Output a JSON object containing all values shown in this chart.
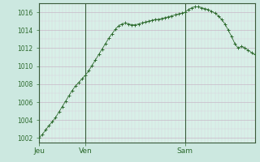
{
  "background_color": "#cce8e0",
  "plot_bg_color": "#d8f0e8",
  "line_color": "#2d6a2d",
  "marker_color": "#2d6a2d",
  "grid_major_color": "#c8b8c8",
  "grid_minor_color": "#dcd0dc",
  "axis_color": "#3a5a3a",
  "tick_label_color": "#2d6a2d",
  "ylim": [
    1001.5,
    1017.0
  ],
  "yticks": [
    1002,
    1004,
    1006,
    1008,
    1010,
    1012,
    1014,
    1016
  ],
  "day_labels": [
    "Jeu",
    "Ven",
    "Sam"
  ],
  "day_positions": [
    0,
    14,
    44
  ],
  "total_points": 66,
  "x_values": [
    0,
    1,
    2,
    3,
    4,
    5,
    6,
    7,
    8,
    9,
    10,
    11,
    12,
    13,
    14,
    15,
    16,
    17,
    18,
    19,
    20,
    21,
    22,
    23,
    24,
    25,
    26,
    27,
    28,
    29,
    30,
    31,
    32,
    33,
    34,
    35,
    36,
    37,
    38,
    39,
    40,
    41,
    42,
    43,
    44,
    45,
    46,
    47,
    48,
    49,
    50,
    51,
    52,
    53,
    54,
    55,
    56,
    57,
    58,
    59,
    60,
    61,
    62,
    63,
    64,
    65
  ],
  "y_values": [
    1002.0,
    1002.4,
    1002.9,
    1003.4,
    1003.8,
    1004.3,
    1004.9,
    1005.5,
    1006.1,
    1006.7,
    1007.3,
    1007.8,
    1008.2,
    1008.6,
    1009.0,
    1009.5,
    1010.1,
    1010.7,
    1011.3,
    1011.9,
    1012.5,
    1013.1,
    1013.6,
    1014.1,
    1014.5,
    1014.7,
    1014.8,
    1014.7,
    1014.6,
    1014.6,
    1014.7,
    1014.8,
    1014.9,
    1015.0,
    1015.1,
    1015.2,
    1015.2,
    1015.3,
    1015.4,
    1015.5,
    1015.6,
    1015.7,
    1015.8,
    1015.9,
    1016.0,
    1016.3,
    1016.5,
    1016.6,
    1016.6,
    1016.5,
    1016.4,
    1016.3,
    1016.1,
    1015.9,
    1015.6,
    1015.2,
    1014.7,
    1014.0,
    1013.3,
    1012.5,
    1012.0,
    1012.2,
    1012.0,
    1011.8,
    1011.5,
    1011.3
  ]
}
